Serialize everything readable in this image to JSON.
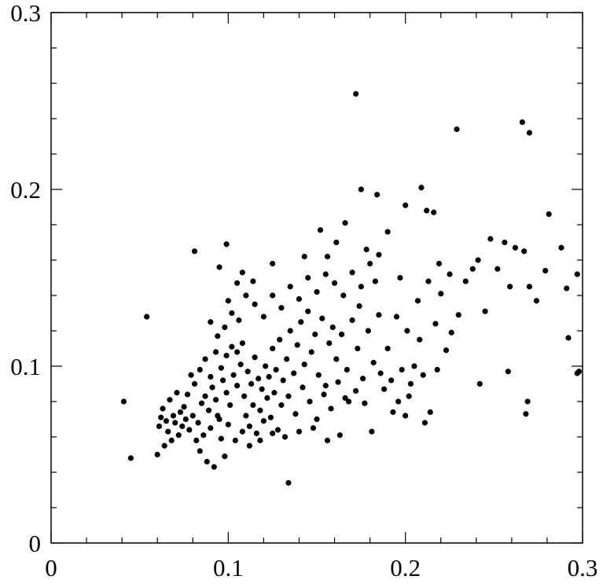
{
  "chart_data": {
    "type": "scatter",
    "color": "#000000",
    "xlim": [
      0,
      0.3
    ],
    "ylim": [
      0,
      0.3
    ],
    "xticks": [
      0,
      0.1,
      0.2,
      0.3
    ],
    "yticks": [
      0,
      0.1,
      0.2,
      0.3
    ],
    "xminorticks": [
      0.02,
      0.04,
      0.06,
      0.08,
      0.12,
      0.14,
      0.16,
      0.18,
      0.22,
      0.24,
      0.26,
      0.28
    ],
    "yminorticks": [
      0.02,
      0.04,
      0.06,
      0.08,
      0.12,
      0.14,
      0.16,
      0.18,
      0.22,
      0.24,
      0.26,
      0.28
    ],
    "x": [
      0.08,
      0.083,
      0.085,
      0.087,
      0.089,
      0.091,
      0.093,
      0.095,
      0.097,
      0.099,
      0.101,
      0.103,
      0.105,
      0.107,
      0.109,
      0.111,
      0.113,
      0.115,
      0.117,
      0.119,
      0.078,
      0.076,
      0.074,
      0.072,
      0.07,
      0.068,
      0.066,
      0.064,
      0.062,
      0.06,
      0.082,
      0.084,
      0.086,
      0.088,
      0.09,
      0.092,
      0.094,
      0.096,
      0.098,
      0.1,
      0.081,
      0.084,
      0.087,
      0.09,
      0.093,
      0.096,
      0.099,
      0.102,
      0.105,
      0.108,
      0.11,
      0.112,
      0.114,
      0.116,
      0.118,
      0.12,
      0.122,
      0.124,
      0.126,
      0.128,
      0.121,
      0.123,
      0.125,
      0.127,
      0.129,
      0.131,
      0.133,
      0.135,
      0.137,
      0.139,
      0.141,
      0.143,
      0.145,
      0.147,
      0.149,
      0.151,
      0.153,
      0.155,
      0.157,
      0.159,
      0.13,
      0.134,
      0.138,
      0.142,
      0.146,
      0.15,
      0.154,
      0.158,
      0.162,
      0.166,
      0.161,
      0.164,
      0.167,
      0.17,
      0.173,
      0.176,
      0.179,
      0.182,
      0.185,
      0.188,
      0.115,
      0.12,
      0.125,
      0.13,
      0.135,
      0.14,
      0.145,
      0.15,
      0.155,
      0.16,
      0.165,
      0.17,
      0.175,
      0.18,
      0.185,
      0.19,
      0.195,
      0.198,
      0.202,
      0.205,
      0.19,
      0.193,
      0.2,
      0.208,
      0.211,
      0.214,
      0.217,
      0.22,
      0.223,
      0.226,
      0.063,
      0.067,
      0.071,
      0.075,
      0.079,
      0.077,
      0.073,
      0.069,
      0.065,
      0.061,
      0.104,
      0.108,
      0.112,
      0.118,
      0.125,
      0.132,
      0.14,
      0.148,
      0.156,
      0.163,
      0.094,
      0.098,
      0.102,
      0.106,
      0.11,
      0.1,
      0.095,
      0.108,
      0.114,
      0.09,
      0.168,
      0.172,
      0.177,
      0.181,
      0.186,
      0.192,
      0.196,
      0.203,
      0.21,
      0.218,
      0.23,
      0.234,
      0.238,
      0.241,
      0.245,
      0.248,
      0.252,
      0.256,
      0.259,
      0.262,
      0.267,
      0.27,
      0.274,
      0.279,
      0.225,
      0.219,
      0.213,
      0.207,
      0.201,
      0.197,
      0.161,
      0.156,
      0.166,
      0.178,
      0.183,
      0.174,
      0.152,
      0.143,
      0.125,
      0.105,
      0.172,
      0.229,
      0.266,
      0.27,
      0.209,
      0.175,
      0.184,
      0.2,
      0.212,
      0.216,
      0.281,
      0.288,
      0.054,
      0.041,
      0.045,
      0.134,
      0.297,
      0.297,
      0.298,
      0.268,
      0.269,
      0.242,
      0.258,
      0.292,
      0.291,
      0.081,
      0.099
    ],
    "y": [
      0.072,
      0.068,
      0.079,
      0.083,
      0.075,
      0.088,
      0.081,
      0.07,
      0.092,
      0.085,
      0.078,
      0.095,
      0.089,
      0.101,
      0.083,
      0.097,
      0.09,
      0.105,
      0.093,
      0.087,
      0.064,
      0.07,
      0.066,
      0.061,
      0.068,
      0.058,
      0.063,
      0.055,
      0.071,
      0.05,
      0.058,
      0.052,
      0.061,
      0.046,
      0.065,
      0.043,
      0.072,
      0.059,
      0.049,
      0.067,
      0.09,
      0.098,
      0.104,
      0.094,
      0.108,
      0.099,
      0.106,
      0.111,
      0.108,
      0.113,
      0.072,
      0.066,
      0.078,
      0.062,
      0.075,
      0.069,
      0.082,
      0.071,
      0.085,
      0.064,
      0.1,
      0.094,
      0.11,
      0.098,
      0.115,
      0.092,
      0.104,
      0.12,
      0.096,
      0.112,
      0.125,
      0.101,
      0.131,
      0.108,
      0.118,
      0.095,
      0.127,
      0.089,
      0.113,
      0.122,
      0.078,
      0.083,
      0.073,
      0.088,
      0.08,
      0.07,
      0.084,
      0.076,
      0.091,
      0.082,
      0.104,
      0.118,
      0.098,
      0.126,
      0.11,
      0.093,
      0.12,
      0.102,
      0.129,
      0.087,
      0.135,
      0.128,
      0.14,
      0.133,
      0.145,
      0.138,
      0.15,
      0.142,
      0.152,
      0.147,
      0.14,
      0.153,
      0.145,
      0.158,
      0.163,
      0.176,
      0.128,
      0.098,
      0.083,
      0.1,
      0.11,
      0.074,
      0.072,
      0.115,
      0.068,
      0.074,
      0.124,
      0.141,
      0.109,
      0.119,
      0.076,
      0.081,
      0.085,
      0.077,
      0.095,
      0.084,
      0.074,
      0.072,
      0.069,
      0.066,
      0.058,
      0.063,
      0.055,
      0.058,
      0.062,
      0.06,
      0.063,
      0.065,
      0.058,
      0.061,
      0.117,
      0.122,
      0.13,
      0.126,
      0.14,
      0.137,
      0.156,
      0.153,
      0.148,
      0.125,
      0.08,
      0.086,
      0.079,
      0.063,
      0.096,
      0.092,
      0.08,
      0.09,
      0.095,
      0.098,
      0.129,
      0.148,
      0.155,
      0.16,
      0.131,
      0.172,
      0.155,
      0.17,
      0.145,
      0.167,
      0.165,
      0.145,
      0.137,
      0.154,
      0.152,
      0.158,
      0.148,
      0.137,
      0.12,
      0.15,
      0.17,
      0.162,
      0.181,
      0.166,
      0.148,
      0.134,
      0.177,
      0.162,
      0.158,
      0.147,
      0.254,
      0.234,
      0.238,
      0.232,
      0.201,
      0.2,
      0.197,
      0.191,
      0.188,
      0.187,
      0.186,
      0.167,
      0.128,
      0.08,
      0.048,
      0.034,
      0.152,
      0.096,
      0.097,
      0.073,
      0.08,
      0.09,
      0.097,
      0.116,
      0.144,
      0.165,
      0.169
    ]
  }
}
